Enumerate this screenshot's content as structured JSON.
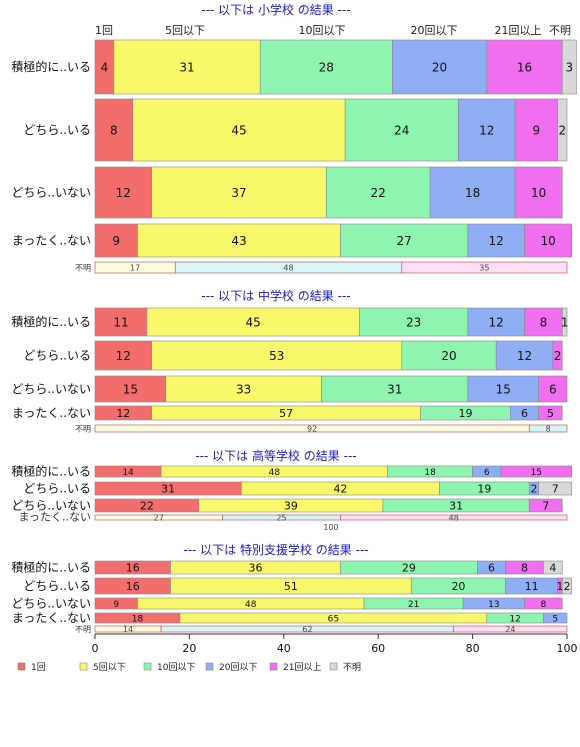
{
  "colors": {
    "c1": "#f46d6d",
    "c2": "#f8f86a",
    "c3": "#8ef5b0",
    "c4": "#90aef5",
    "c5": "#f16ef0",
    "c6": "#d8d8d8",
    "title": "#1a1ad8",
    "unknown_bg": [
      "#fdfde0",
      "#d8f6f6",
      "#fde0f6"
    ]
  },
  "top_header": {
    "labels": [
      "1回",
      "5回以下",
      "10回以下",
      "20回以下",
      "21回以上",
      "不明"
    ]
  },
  "legend": {
    "items": [
      "1回",
      "5回以下",
      "10回以下",
      "20回以下",
      "21回以上",
      "不明"
    ]
  },
  "chart_data": {
    "type": "bar",
    "orientation": "horizontal",
    "stacked": true,
    "xlim": [
      0,
      100
    ],
    "xticks": [
      0,
      20,
      40,
      60,
      80,
      100
    ],
    "series_names": [
      "1回",
      "5回以下",
      "10回以下",
      "20回以下",
      "21回以上",
      "不明"
    ],
    "panels": [
      {
        "title": "--- 以下は 小学校 の結果 ---",
        "rows": [
          {
            "label": "積極的に..いる",
            "values": [
              4,
              31,
              28,
              20,
              16,
              3
            ]
          },
          {
            "label": "どちら..いる",
            "values": [
              8,
              45,
              24,
              12,
              9,
              2
            ]
          },
          {
            "label": "どちら..いない",
            "values": [
              12,
              37,
              22,
              18,
              10,
              0
            ]
          },
          {
            "label": "まったく..ない",
            "values": [
              9,
              43,
              27,
              12,
              10,
              0
            ]
          }
        ],
        "unknown": {
          "label": "不明",
          "values": [
            17,
            48,
            35
          ]
        }
      },
      {
        "title": "--- 以下は 中学校 の結果 ---",
        "rows": [
          {
            "label": "積極的に..いる",
            "values": [
              11,
              45,
              23,
              12,
              8,
              1
            ]
          },
          {
            "label": "どちら..いる",
            "values": [
              12,
              53,
              20,
              12,
              2,
              0
            ]
          },
          {
            "label": "どちら..いない",
            "values": [
              15,
              33,
              31,
              15,
              6,
              0
            ]
          },
          {
            "label": "まったく..ない",
            "values": [
              12,
              57,
              19,
              6,
              5,
              0
            ]
          }
        ],
        "unknown": {
          "label": "不明",
          "values": [
            92,
            8
          ]
        }
      },
      {
        "title": "--- 以下は 高等学校 の結果 ---",
        "rows": [
          {
            "label": "積極的に..いる",
            "values": [
              14,
              48,
              18,
              6,
              15,
              0
            ]
          },
          {
            "label": "どちら..いる",
            "values": [
              31,
              42,
              19,
              2,
              0,
              7
            ]
          },
          {
            "label": "どちら..いない",
            "values": [
              22,
              39,
              31,
              0,
              7,
              0
            ]
          }
        ],
        "unknown": {
          "label": "まったく..ない",
          "values": [
            27,
            25,
            48
          ],
          "pct_ticks_label": "100"
        }
      },
      {
        "title": "--- 以下は 特別支援学校 の結果 ---",
        "rows": [
          {
            "label": "積極的に..いる",
            "values": [
              16,
              36,
              29,
              6,
              8,
              4
            ]
          },
          {
            "label": "どちら..いる",
            "values": [
              16,
              51,
              20,
              11,
              1,
              2
            ]
          },
          {
            "label": "どちら..いない",
            "values": [
              9,
              48,
              21,
              13,
              8,
              0
            ]
          },
          {
            "label": "まったく..ない",
            "values": [
              18,
              65,
              12,
              5,
              0,
              0
            ]
          }
        ],
        "unknown": {
          "label": "不明",
          "values": [
            14,
            62,
            24
          ]
        }
      }
    ]
  }
}
